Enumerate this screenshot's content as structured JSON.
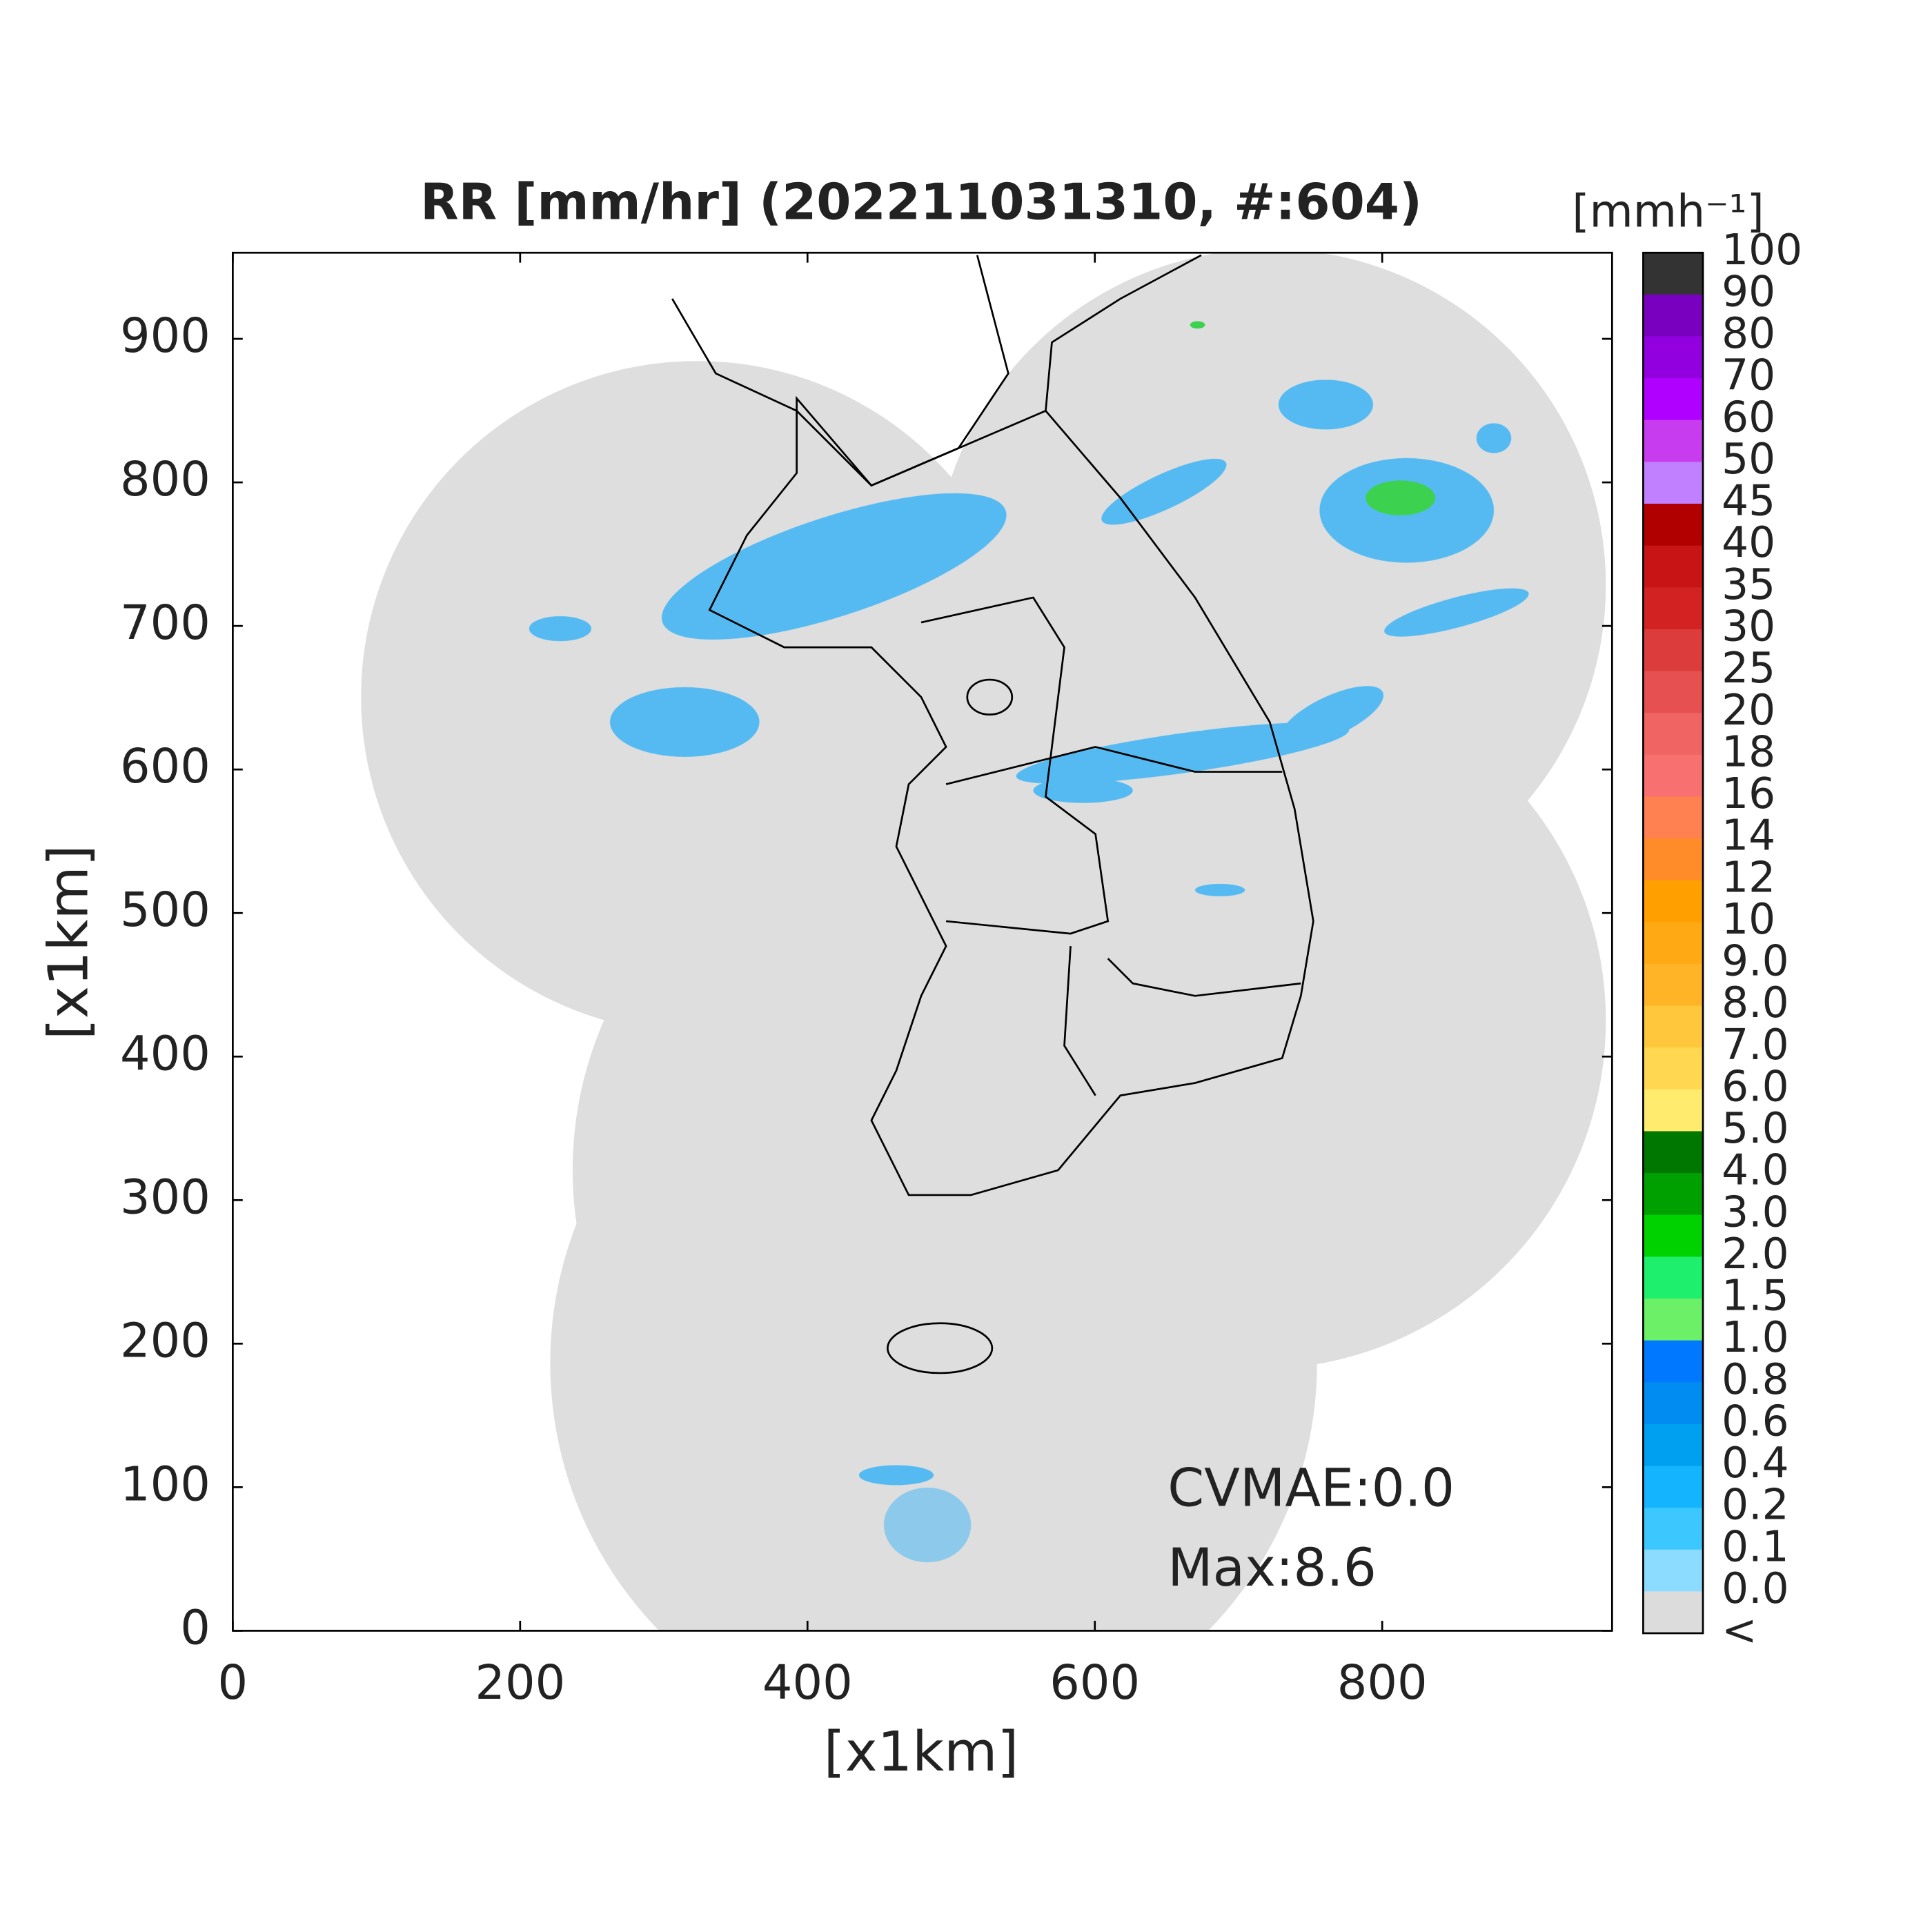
{
  "title": "RR [mm/hr] (202211031310, #:604)",
  "x_axis": {
    "label": "[x1km]",
    "lim": [
      0,
      960
    ],
    "ticks": [
      0,
      200,
      400,
      600,
      800
    ]
  },
  "y_axis": {
    "label": "[x1km]",
    "lim": [
      0,
      960
    ],
    "ticks": [
      0,
      100,
      200,
      300,
      400,
      500,
      600,
      700,
      800,
      900
    ]
  },
  "colorbar": {
    "unit": "[mmh⁻¹]",
    "labels": [
      "100",
      "90",
      "80",
      "70",
      "60",
      "50",
      "45",
      "40",
      "35",
      "30",
      "25",
      "20",
      "18",
      "16",
      "14",
      "12",
      "10",
      "9.0",
      "8.0",
      "7.0",
      "6.0",
      "5.0",
      "4.0",
      "3.0",
      "2.0",
      "1.5",
      "1.0",
      "0.8",
      "0.6",
      "0.4",
      "0.2",
      "0.1",
      "0.0",
      "<"
    ],
    "colors": [
      "#333333",
      "#7a00bf",
      "#9300e0",
      "#b000ff",
      "#c83cf0",
      "#c080ff",
      "#b00000",
      "#c81414",
      "#d22222",
      "#dc3c3c",
      "#e65050",
      "#f06464",
      "#f87070",
      "#ff8050",
      "#ff8c28",
      "#ffa000",
      "#ffaa14",
      "#ffb428",
      "#ffc83c",
      "#ffd750",
      "#ffeb6e",
      "#007800",
      "#00a000",
      "#00d200",
      "#1ef06e",
      "#6bf068",
      "#0078ff",
      "#008cf0",
      "#00a0f0",
      "#14b4ff",
      "#3cc8ff",
      "#8cdcff",
      "#dcdcdc",
      "#ffffff"
    ]
  },
  "annotations": [
    "CVMAE:0.0",
    "Max:8.6"
  ]
}
